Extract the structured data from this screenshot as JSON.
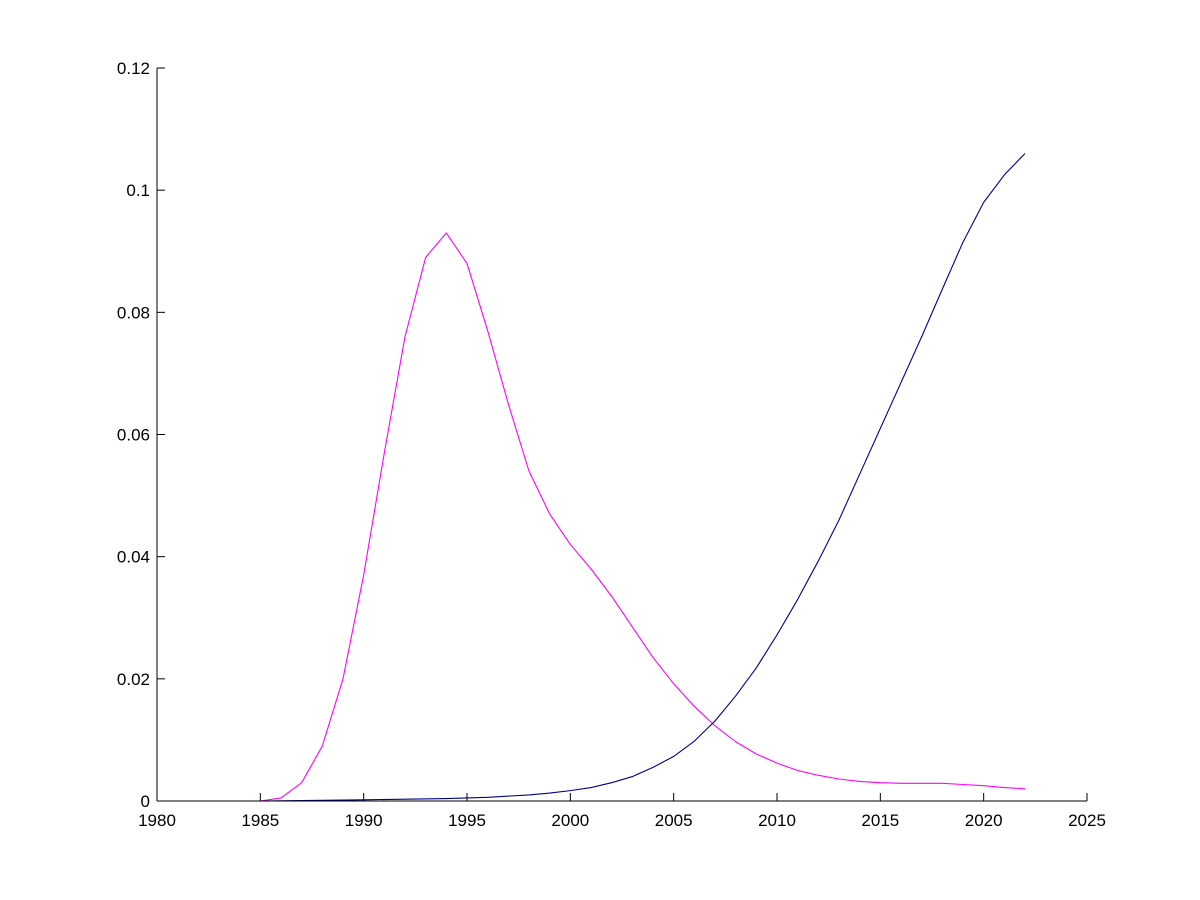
{
  "chart_data": {
    "type": "line",
    "title": "",
    "xlabel": "",
    "ylabel": "",
    "xlim": [
      1980,
      2025
    ],
    "ylim": [
      0,
      0.12
    ],
    "grid": false,
    "x_ticks": [
      "1980",
      "1985",
      "1990",
      "1995",
      "2000",
      "2005",
      "2010",
      "2015",
      "2020",
      "2025"
    ],
    "y_ticks": [
      "0",
      "0.02",
      "0.04",
      "0.06",
      "0.08",
      "0.1",
      "0.12"
    ],
    "series": [
      {
        "color": "#ff00ff",
        "points": [
          [
            1980,
            0
          ],
          [
            1985,
            0
          ],
          [
            1986,
            0.0005
          ],
          [
            1987,
            0.003
          ],
          [
            1988,
            0.009
          ],
          [
            1989,
            0.02
          ],
          [
            1990,
            0.037
          ],
          [
            1991,
            0.057
          ],
          [
            1992,
            0.076
          ],
          [
            1993,
            0.089
          ],
          [
            1994,
            0.093
          ],
          [
            1995,
            0.088
          ],
          [
            1996,
            0.077
          ],
          [
            1997,
            0.065
          ],
          [
            1998,
            0.054
          ],
          [
            1999,
            0.047
          ],
          [
            2000,
            0.042
          ],
          [
            2001,
            0.038
          ],
          [
            2002,
            0.0335
          ],
          [
            2003,
            0.0285
          ],
          [
            2004,
            0.0235
          ],
          [
            2005,
            0.0192
          ],
          [
            2006,
            0.0155
          ],
          [
            2007,
            0.0123
          ],
          [
            2008,
            0.0097
          ],
          [
            2009,
            0.0077
          ],
          [
            2010,
            0.0062
          ],
          [
            2011,
            0.005
          ],
          [
            2012,
            0.0042
          ],
          [
            2013,
            0.0036
          ],
          [
            2014,
            0.0032
          ],
          [
            2015,
            0.003
          ],
          [
            2016,
            0.0029
          ],
          [
            2017,
            0.0029
          ],
          [
            2018,
            0.0029
          ],
          [
            2019,
            0.0027
          ],
          [
            2020,
            0.0025
          ],
          [
            2021,
            0.0022
          ],
          [
            2022,
            0.002
          ]
        ]
      },
      {
        "color": "#00008b",
        "points": [
          [
            1980,
            0
          ],
          [
            1985,
            0
          ],
          [
            1990,
            0.0002
          ],
          [
            1994,
            0.0004
          ],
          [
            1996,
            0.0006
          ],
          [
            1998,
            0.001
          ],
          [
            1999,
            0.0013
          ],
          [
            2000,
            0.0017
          ],
          [
            2001,
            0.0022
          ],
          [
            2002,
            0.003
          ],
          [
            2003,
            0.004
          ],
          [
            2004,
            0.0055
          ],
          [
            2005,
            0.0073
          ],
          [
            2006,
            0.0098
          ],
          [
            2007,
            0.0131
          ],
          [
            2008,
            0.0172
          ],
          [
            2009,
            0.0218
          ],
          [
            2010,
            0.0272
          ],
          [
            2011,
            0.033
          ],
          [
            2012,
            0.0393
          ],
          [
            2013,
            0.046
          ],
          [
            2014,
            0.0535
          ],
          [
            2015,
            0.061
          ],
          [
            2016,
            0.0685
          ],
          [
            2017,
            0.076
          ],
          [
            2018,
            0.0838
          ],
          [
            2019,
            0.0915
          ],
          [
            2020,
            0.098
          ],
          [
            2021,
            0.1025
          ],
          [
            2022,
            0.106
          ]
        ]
      }
    ]
  }
}
